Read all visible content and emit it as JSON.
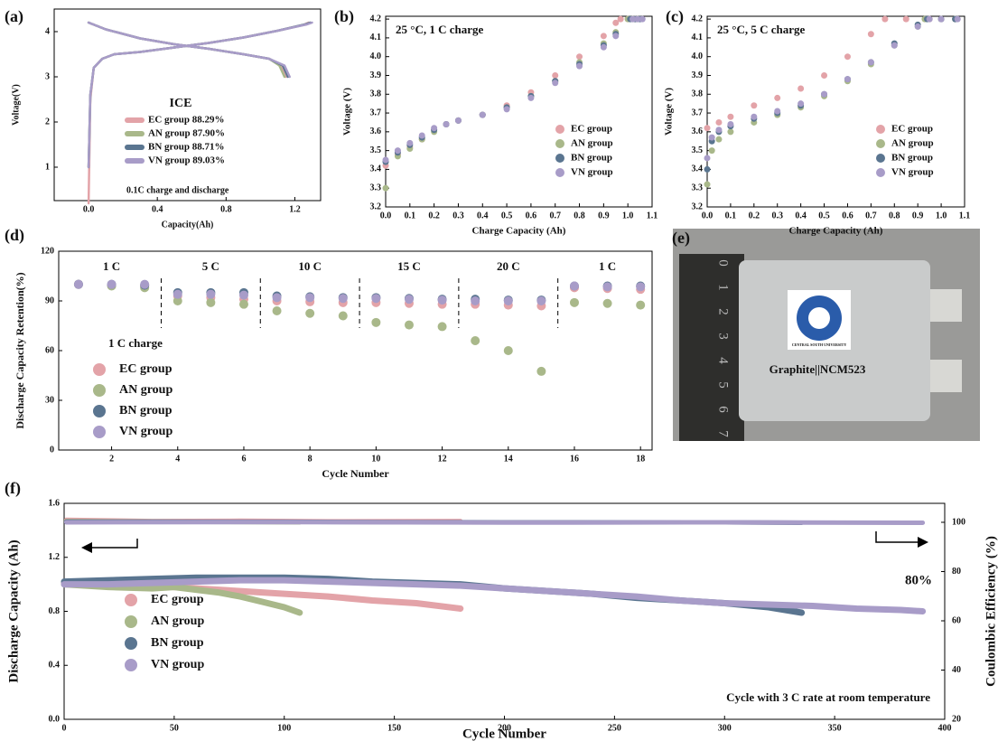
{
  "chart_data": [
    {
      "type": "line",
      "panel": "(a)",
      "x_label": "Capacity(Ah)",
      "y_label": "Voltage(V)",
      "xlim": [
        -0.2,
        1.35
      ],
      "ylim": [
        0.26,
        4.5
      ],
      "xticks": [
        {
          "value": 0,
          "label": "0.0"
        },
        0.4,
        0.8,
        1.2
      ],
      "yticks": [
        1,
        2,
        3,
        4
      ],
      "legend": "center",
      "legend_title": "ICE",
      "annotations": [
        "0.1C charge and discharge"
      ],
      "series": [
        {
          "name": "EC group 88.29%",
          "color": "#e3a3a8",
          "x": [
            0,
            0.01,
            0.03,
            0.08,
            0.15,
            0.3,
            0.5,
            0.7,
            0.9,
            1.1,
            1.25,
            1.28,
            null,
            0,
            0.1,
            0.3,
            0.5,
            0.7,
            0.9,
            1.05,
            1.12,
            1.15
          ],
          "values": [
            0.2,
            2.5,
            3.2,
            3.4,
            3.5,
            3.55,
            3.65,
            3.75,
            3.87,
            4.02,
            4.15,
            4.2,
            null,
            4.2,
            4.05,
            3.85,
            3.72,
            3.62,
            3.5,
            3.4,
            3.25,
            3.0
          ]
        },
        {
          "name": "AN group 87.90%",
          "color": "#a9b88a",
          "x": [
            0,
            0.01,
            0.03,
            0.08,
            0.15,
            0.3,
            0.5,
            0.7,
            0.9,
            1.1,
            1.26,
            1.29,
            null,
            0,
            0.1,
            0.3,
            0.5,
            0.7,
            0.9,
            1.05,
            1.11,
            1.14
          ],
          "values": [
            1.0,
            2.6,
            3.2,
            3.4,
            3.5,
            3.55,
            3.65,
            3.75,
            3.87,
            4.02,
            4.16,
            4.2,
            null,
            4.2,
            4.05,
            3.85,
            3.72,
            3.62,
            3.5,
            3.4,
            3.25,
            3.0
          ]
        },
        {
          "name": "BN group 88.71%",
          "color": "#5a7590",
          "x": [
            0,
            0.01,
            0.03,
            0.08,
            0.15,
            0.3,
            0.5,
            0.7,
            0.9,
            1.1,
            1.26,
            1.29,
            null,
            0,
            0.1,
            0.3,
            0.5,
            0.7,
            0.9,
            1.05,
            1.13,
            1.16
          ],
          "values": [
            1.0,
            2.6,
            3.2,
            3.4,
            3.5,
            3.55,
            3.65,
            3.75,
            3.87,
            4.02,
            4.16,
            4.2,
            null,
            4.2,
            4.05,
            3.85,
            3.72,
            3.62,
            3.5,
            3.4,
            3.25,
            3.0
          ]
        },
        {
          "name": "VN group 89.03%",
          "color": "#a89cc8",
          "x": [
            0,
            0.01,
            0.03,
            0.08,
            0.15,
            0.3,
            0.5,
            0.7,
            0.9,
            1.1,
            1.27,
            1.3,
            null,
            0,
            0.1,
            0.3,
            0.5,
            0.7,
            0.9,
            1.05,
            1.14,
            1.17
          ],
          "values": [
            1.0,
            2.6,
            3.2,
            3.4,
            3.5,
            3.55,
            3.65,
            3.75,
            3.87,
            4.02,
            4.16,
            4.2,
            null,
            4.2,
            4.05,
            3.85,
            3.72,
            3.62,
            3.5,
            3.4,
            3.25,
            3.0
          ]
        }
      ]
    },
    {
      "type": "scatter",
      "panel": "(b)",
      "x_label": "Charge Capacity (Ah)",
      "y_label": "Voltage (V)",
      "xlim": [
        0,
        1.1
      ],
      "ylim": [
        3.2,
        4.215
      ],
      "xticks": [
        {
          "value": 0,
          "label": "0.0"
        },
        0.1,
        0.2,
        0.3,
        0.4,
        0.5,
        0.6,
        0.7,
        0.8,
        0.9,
        {
          "value": 1,
          "label": "1.0"
        },
        1.1
      ],
      "yticks": [
        3.2,
        3.3,
        3.4,
        3.5,
        3.6,
        3.7,
        3.8,
        3.9,
        {
          "value": 4,
          "label": "4.0"
        },
        4.1,
        4.2
      ],
      "legend": "lower right",
      "annotations": [
        "25 °C, 1 C charge"
      ],
      "series": [
        {
          "name": "EC group",
          "color": "#e3a3a8",
          "x": [
            0,
            0.05,
            0.1,
            0.15,
            0.2,
            0.25,
            0.3,
            0.4,
            0.5,
            0.6,
            0.7,
            0.8,
            0.9,
            0.95,
            0.97,
            1.0,
            1.03
          ],
          "values": [
            3.42,
            3.48,
            3.52,
            3.56,
            3.61,
            3.64,
            3.66,
            3.69,
            3.74,
            3.81,
            3.9,
            4.0,
            4.11,
            4.18,
            4.2,
            4.2,
            4.2
          ]
        },
        {
          "name": "AN group",
          "color": "#a9b88a",
          "x": [
            0,
            0.05,
            0.1,
            0.15,
            0.2,
            0.25,
            0.3,
            0.4,
            0.5,
            0.6,
            0.7,
            0.8,
            0.9,
            0.95,
            1.0,
            1.02,
            1.04
          ],
          "values": [
            3.3,
            3.47,
            3.51,
            3.56,
            3.6,
            3.64,
            3.66,
            3.69,
            3.73,
            3.79,
            3.87,
            3.97,
            4.07,
            4.13,
            4.2,
            4.2,
            4.2
          ]
        },
        {
          "name": "BN group",
          "color": "#5a7590",
          "x": [
            0,
            0.05,
            0.1,
            0.15,
            0.2,
            0.25,
            0.3,
            0.4,
            0.5,
            0.6,
            0.7,
            0.8,
            0.9,
            0.95,
            1.01,
            1.03,
            1.05
          ],
          "values": [
            3.44,
            3.49,
            3.53,
            3.57,
            3.61,
            3.64,
            3.66,
            3.69,
            3.73,
            3.79,
            3.87,
            3.96,
            4.06,
            4.12,
            4.2,
            4.2,
            4.2
          ]
        },
        {
          "name": "VN group",
          "color": "#a89cc8",
          "x": [
            0,
            0.05,
            0.1,
            0.15,
            0.2,
            0.25,
            0.3,
            0.4,
            0.5,
            0.6,
            0.7,
            0.8,
            0.9,
            0.95,
            1.02,
            1.04,
            1.06
          ],
          "values": [
            3.45,
            3.5,
            3.54,
            3.58,
            3.62,
            3.64,
            3.66,
            3.69,
            3.72,
            3.78,
            3.86,
            3.95,
            4.05,
            4.11,
            4.2,
            4.2,
            4.2
          ]
        }
      ]
    },
    {
      "type": "scatter",
      "panel": "(c)",
      "x_label": "Charge Capacity (Ah)",
      "y_label": "Voltage (V)",
      "xlim": [
        0,
        1.1
      ],
      "ylim": [
        3.2,
        4.215
      ],
      "xticks": [
        {
          "value": 0,
          "label": "0.0"
        },
        0.1,
        0.2,
        0.3,
        0.4,
        0.5,
        0.6,
        0.7,
        0.8,
        0.9,
        {
          "value": 1,
          "label": "1.0"
        },
        1.1
      ],
      "yticks": [
        3.2,
        3.3,
        3.4,
        3.5,
        3.6,
        3.7,
        3.8,
        3.9,
        {
          "value": 4,
          "label": "4.0"
        },
        4.1,
        4.2
      ],
      "legend": "lower right",
      "annotations": [
        "25 °C, 5 C charge"
      ],
      "series": [
        {
          "name": "EC group",
          "color": "#e3a3a8",
          "x": [
            0,
            0.05,
            0.1,
            0.2,
            0.3,
            0.4,
            0.5,
            0.6,
            0.7,
            0.76,
            0.85,
            0.95,
            1.06
          ],
          "values": [
            3.62,
            3.65,
            3.68,
            3.74,
            3.78,
            3.83,
            3.9,
            4.0,
            4.12,
            4.2,
            4.2,
            4.2,
            4.2
          ]
        },
        {
          "name": "AN group",
          "color": "#a9b88a",
          "x": [
            0,
            0.02,
            0.05,
            0.1,
            0.2,
            0.3,
            0.4,
            0.5,
            0.6,
            0.7,
            0.8,
            0.9,
            0.93,
            1.0,
            1.06
          ],
          "values": [
            3.32,
            3.5,
            3.56,
            3.6,
            3.65,
            3.69,
            3.73,
            3.79,
            3.87,
            3.96,
            4.06,
            4.16,
            4.2,
            4.2,
            4.2
          ]
        },
        {
          "name": "BN group",
          "color": "#5a7590",
          "x": [
            0,
            0.02,
            0.05,
            0.1,
            0.2,
            0.3,
            0.4,
            0.5,
            0.6,
            0.7,
            0.8,
            0.9,
            0.94,
            1.0,
            1.06
          ],
          "values": [
            3.4,
            3.55,
            3.6,
            3.63,
            3.67,
            3.7,
            3.74,
            3.8,
            3.88,
            3.97,
            4.07,
            4.17,
            4.2,
            4.2,
            4.2
          ]
        },
        {
          "name": "VN group",
          "color": "#a89cc8",
          "x": [
            0,
            0.02,
            0.05,
            0.1,
            0.2,
            0.3,
            0.4,
            0.5,
            0.6,
            0.7,
            0.8,
            0.9,
            0.95,
            1.0,
            1.07
          ],
          "values": [
            3.46,
            3.57,
            3.61,
            3.64,
            3.68,
            3.71,
            3.75,
            3.8,
            3.88,
            3.97,
            4.06,
            4.16,
            4.2,
            4.2,
            4.2
          ]
        }
      ]
    },
    {
      "type": "scatter",
      "panel": "(d)",
      "x_label": "Cycle Number",
      "y_label": "Discharge Capacity Retention(%)",
      "xlim": [
        0.4,
        18.35
      ],
      "ylim": [
        0,
        120
      ],
      "xticks": [
        2,
        4,
        6,
        8,
        10,
        12,
        14,
        16,
        18
      ],
      "yticks": [
        0,
        30,
        60,
        90,
        120
      ],
      "legend": "lower left",
      "legend_title": "1 C charge",
      "rate_labels": [
        "1 C",
        "5 C",
        "10 C",
        "15 C",
        "20 C",
        "1 C"
      ],
      "x": [
        1,
        2,
        3,
        4,
        5,
        6,
        7,
        8,
        9,
        10,
        11,
        12,
        13,
        14,
        15,
        16,
        17,
        18
      ],
      "series": [
        {
          "name": "EC group",
          "color": "#e3a3a8",
          "values": [
            100,
            99.5,
            99,
            93,
            92,
            91,
            90,
            89.5,
            89,
            89,
            88.5,
            88,
            88,
            87.5,
            87,
            98,
            97.5,
            97
          ]
        },
        {
          "name": "AN group",
          "color": "#a9b88a",
          "values": [
            100,
            99,
            98,
            90,
            89,
            88,
            84,
            82.5,
            81,
            77,
            75.5,
            74.5,
            66,
            60,
            47.5,
            89,
            88.5,
            87.5
          ]
        },
        {
          "name": "BN group",
          "color": "#5a7590",
          "values": [
            100,
            100,
            99.5,
            95,
            95,
            95,
            93,
            92.5,
            92,
            92,
            91.5,
            91,
            91,
            90.5,
            90.5,
            99,
            99,
            99
          ]
        },
        {
          "name": "VN group",
          "color": "#a89cc8",
          "values": [
            100,
            100,
            100,
            94,
            94,
            93.5,
            92,
            92,
            91.5,
            91.5,
            91,
            90.5,
            90,
            90,
            90,
            99,
            98.5,
            98.5
          ]
        }
      ]
    },
    {
      "type": "line",
      "panel": "(f)",
      "x_label": "Cycle Number",
      "y_label": "Discharge Capacity (Ah)",
      "y2_label": "Coulombic Efficiency (%)",
      "xlim": [
        0,
        400
      ],
      "ylim": [
        0,
        1.6
      ],
      "y2lim": [
        20,
        107.7
      ],
      "xticks": [
        0,
        50,
        100,
        150,
        200,
        250,
        300,
        350,
        400
      ],
      "yticks": [
        {
          "value": 0,
          "label": "0.0"
        },
        0.4,
        0.8,
        1.2,
        1.6
      ],
      "y2ticks": [
        20,
        40,
        60,
        80,
        100
      ],
      "legend": "lower left",
      "annotations": [
        "80%",
        "Cycle with 3 C rate at room temperature"
      ],
      "series": [
        {
          "name": "EC group",
          "color": "#e3a3a8",
          "x": [
            0,
            20,
            40,
            60,
            80,
            100,
            120,
            140,
            160,
            180
          ],
          "values": [
            1.01,
            1.0,
            0.99,
            0.97,
            0.95,
            0.93,
            0.91,
            0.88,
            0.86,
            0.82
          ]
        },
        {
          "name": "AN group",
          "color": "#a9b88a",
          "x": [
            0,
            20,
            40,
            50,
            60,
            70,
            80,
            90,
            100,
            107
          ],
          "values": [
            1.0,
            0.98,
            0.97,
            0.98,
            0.96,
            0.94,
            0.91,
            0.87,
            0.83,
            0.79
          ]
        },
        {
          "name": "BN group",
          "color": "#5a7590",
          "x": [
            0,
            20,
            40,
            60,
            80,
            100,
            120,
            140,
            160,
            180,
            200,
            220,
            240,
            260,
            280,
            300,
            320,
            335
          ],
          "values": [
            1.02,
            1.03,
            1.04,
            1.05,
            1.05,
            1.05,
            1.04,
            1.02,
            1.01,
            1.0,
            0.97,
            0.95,
            0.93,
            0.9,
            0.88,
            0.86,
            0.83,
            0.79
          ]
        },
        {
          "name": "VN group",
          "color": "#a89cc8",
          "x": [
            0,
            20,
            40,
            60,
            80,
            100,
            120,
            140,
            160,
            180,
            200,
            220,
            240,
            260,
            280,
            300,
            320,
            340,
            360,
            380,
            390
          ],
          "values": [
            1.0,
            1.0,
            1.01,
            1.02,
            1.03,
            1.03,
            1.02,
            1.01,
            1.0,
            0.99,
            0.97,
            0.95,
            0.93,
            0.91,
            0.88,
            0.86,
            0.85,
            0.84,
            0.82,
            0.81,
            0.8
          ]
        },
        {
          "color": "#e3a3a8",
          "axis": "y2",
          "x": [
            1,
            40,
            80,
            120,
            180
          ],
          "values": [
            101,
            100.5,
            100.6,
            100.4,
            100.5
          ]
        },
        {
          "color": "#a9b88a",
          "axis": "y2",
          "x": [
            1,
            50,
            107
          ],
          "values": [
            100.5,
            100.2,
            100
          ]
        },
        {
          "color": "#5a7590",
          "axis": "y2",
          "x": [
            1,
            100,
            200,
            300,
            335
          ],
          "values": [
            100.3,
            100.2,
            100,
            100,
            99.8
          ]
        },
        {
          "color": "#a89cc8",
          "axis": "y2",
          "x": [
            1,
            100,
            200,
            300,
            390
          ],
          "values": [
            100,
            100.1,
            99.9,
            100,
            99.8
          ]
        }
      ]
    }
  ],
  "photo": {
    "panel": "(e)",
    "ruler": [
      "0",
      "1",
      "2",
      "3",
      "4",
      "5",
      "6",
      "7"
    ],
    "logo_text": "CENTRAL SOUTH UNIVERSITY",
    "caption": "Graphite||NCM523"
  }
}
